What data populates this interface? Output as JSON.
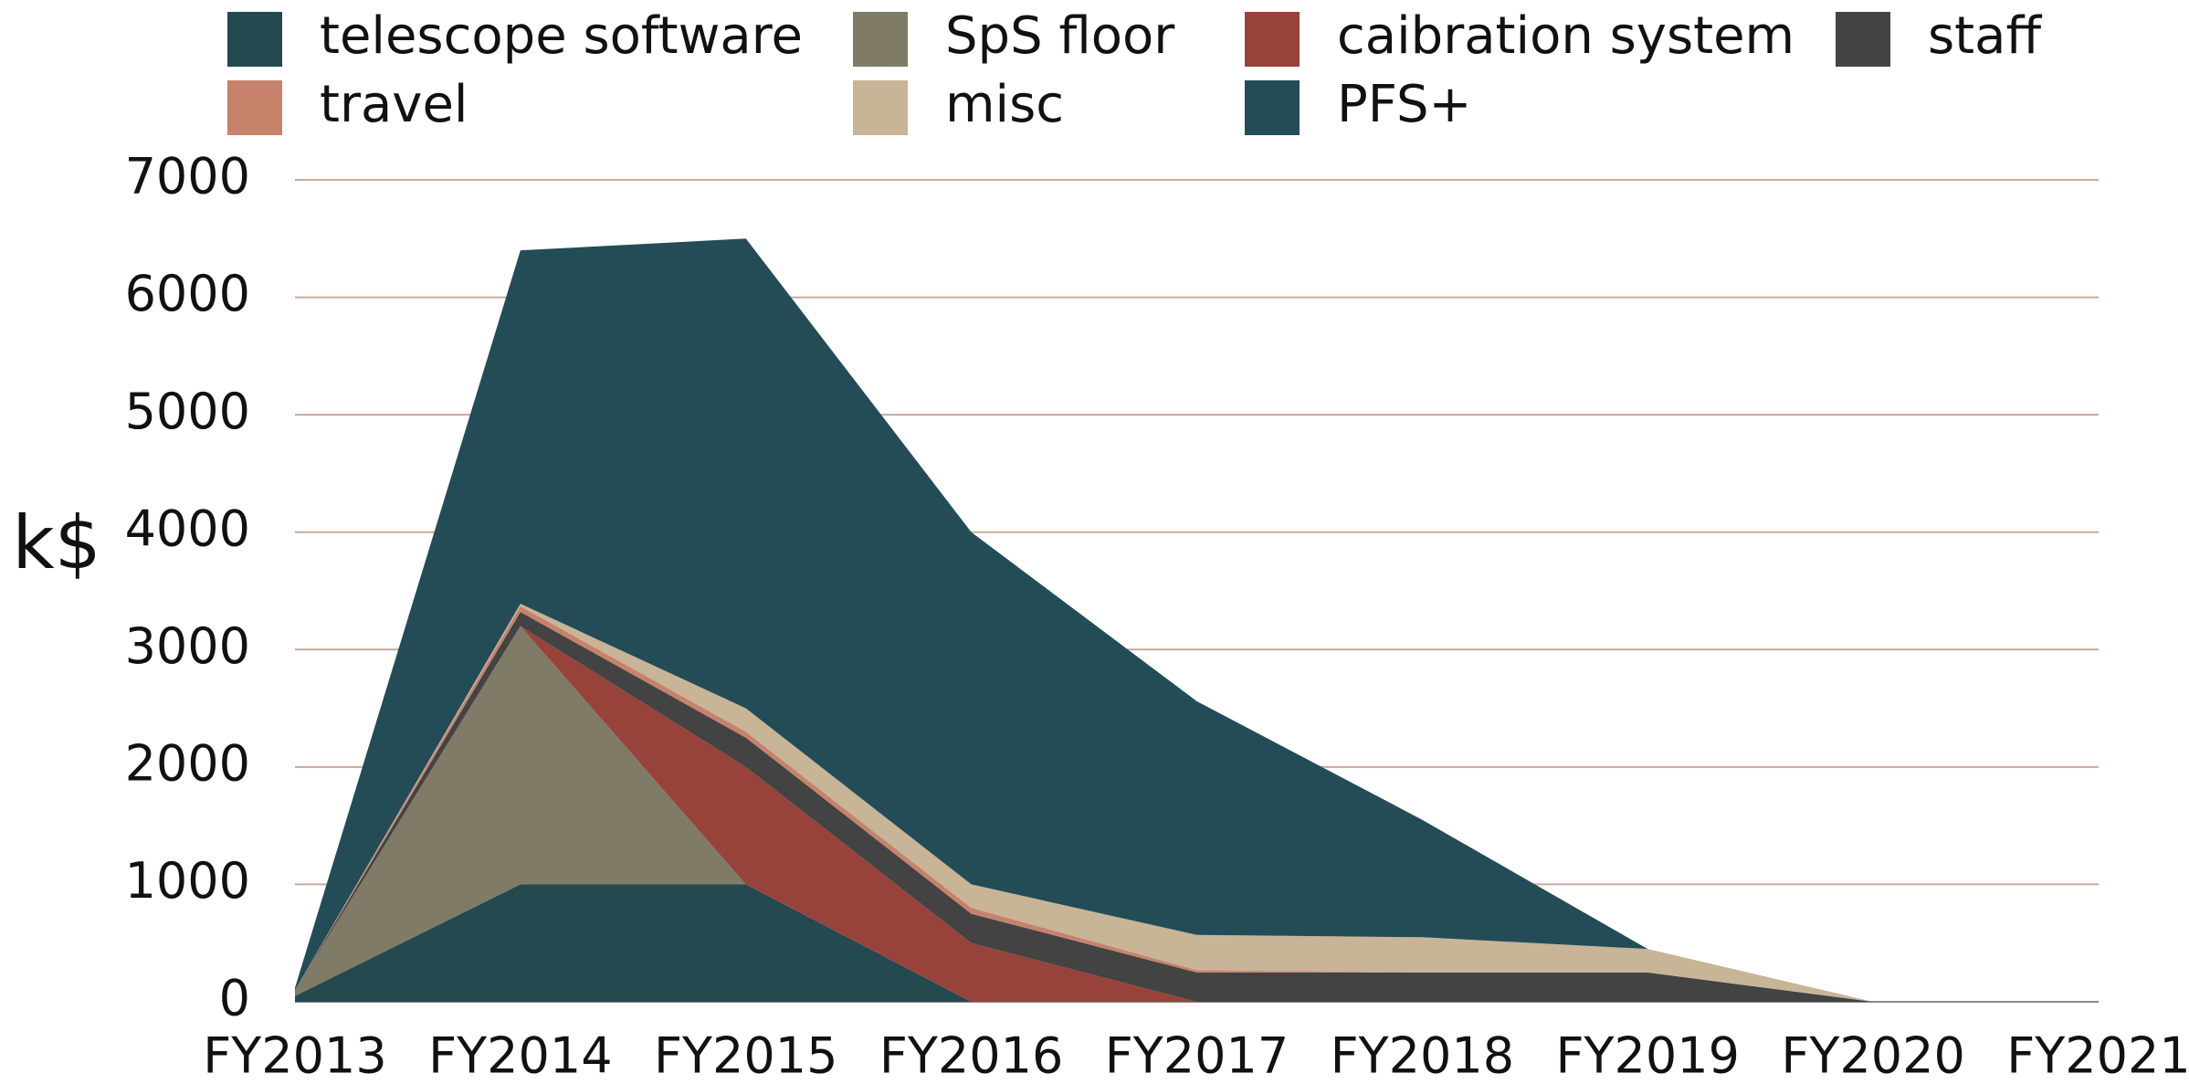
{
  "chart_data": {
    "type": "stacked_area",
    "y_label": "k$",
    "categories": [
      "FY2013",
      "FY2014",
      "FY2015",
      "FY2016",
      "FY2017",
      "FY2018",
      "FY2019",
      "FY2020",
      "FY2021"
    ],
    "series": [
      {
        "name": "telescope software",
        "color": "#24494f",
        "values": [
          50,
          1000,
          1000,
          0,
          0,
          0,
          0,
          0,
          0
        ]
      },
      {
        "name": "SpS floor",
        "color": "#7f7b66",
        "values": [
          50,
          2200,
          0,
          0,
          0,
          0,
          0,
          0,
          0
        ]
      },
      {
        "name": "caibration system",
        "color": "#97433b",
        "values": [
          0,
          0,
          1000,
          500,
          0,
          0,
          0,
          0,
          0
        ]
      },
      {
        "name": "staff",
        "color": "#434343",
        "values": [
          0,
          120,
          250,
          250,
          250,
          250,
          250,
          0,
          0
        ]
      },
      {
        "name": "travel",
        "color": "#c7826b",
        "values": [
          0,
          50,
          50,
          50,
          20,
          0,
          0,
          0,
          0
        ]
      },
      {
        "name": "misc",
        "color": "#c8b497",
        "values": [
          0,
          20,
          200,
          200,
          300,
          300,
          200,
          0,
          0
        ]
      },
      {
        "name": "PFS+",
        "color": "#234c57",
        "values": [
          20,
          3010,
          4000,
          3000,
          1990,
          1000,
          0,
          0,
          0
        ]
      }
    ],
    "ylim": [
      0,
      7000
    ],
    "yticks": [
      0,
      1000,
      2000,
      3000,
      4000,
      5000,
      6000,
      7000
    ],
    "grid": true
  }
}
